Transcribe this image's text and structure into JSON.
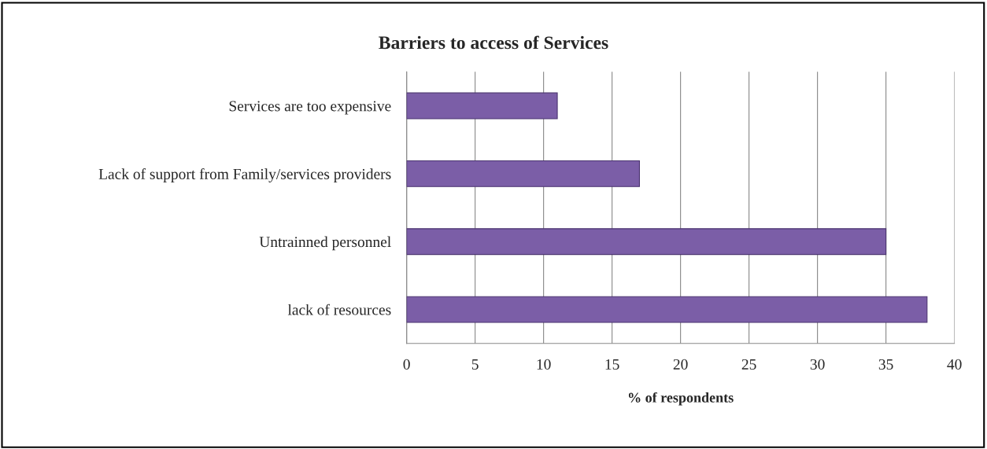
{
  "chart_data": {
    "type": "bar",
    "orientation": "horizontal",
    "title": "Barriers to access of Services",
    "xlabel": "% of respondents",
    "categories": [
      "Services are too expensive",
      "Lack of support from Family/services providers",
      "Untrainned personnel",
      "lack of resources"
    ],
    "values": [
      11,
      17,
      35,
      38
    ],
    "color": "#7b5ea7",
    "xlim": [
      0,
      40
    ],
    "xticks": [
      0,
      5,
      10,
      15,
      20,
      25,
      30,
      35,
      40
    ],
    "grid": "x",
    "legend": false
  }
}
